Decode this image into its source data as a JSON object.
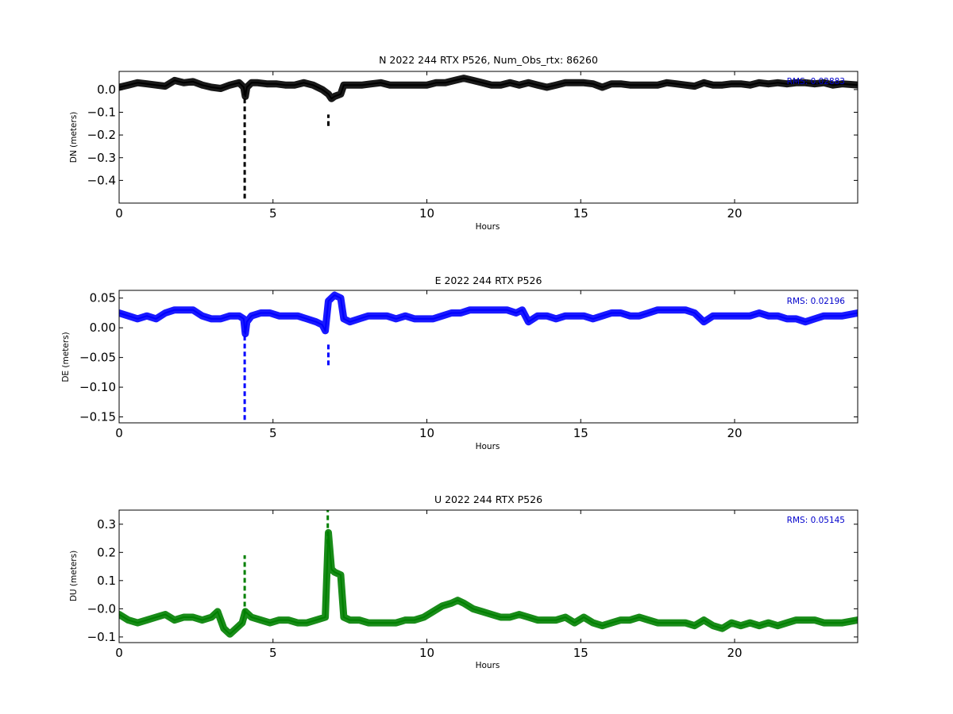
{
  "chart_data": [
    {
      "type": "line",
      "title": "N 2022 244 RTX  P526, Num_Obs_rtx: 86260",
      "xlabel": "Hours",
      "ylabel": "DN (meters)",
      "xlim": [
        0,
        24
      ],
      "ylim": [
        -0.5,
        0.08
      ],
      "xticks": [
        0,
        5,
        10,
        15,
        20
      ],
      "yticks": [
        0.0,
        -0.1,
        -0.2,
        -0.3,
        -0.4
      ],
      "ytick_labels": [
        "0.0",
        "−0.1",
        "−0.2",
        "−0.3",
        "−0.4"
      ],
      "color": "#000000",
      "rms_label": "RMS:  0.02883",
      "series": [
        {
          "x": [
            0.0,
            0.3,
            0.6,
            0.9,
            1.2,
            1.5,
            1.8,
            2.1,
            2.4,
            2.7,
            3.0,
            3.3,
            3.6,
            3.9,
            4.05,
            4.1,
            4.15,
            4.3,
            4.5,
            4.8,
            5.1,
            5.4,
            5.7,
            6.0,
            6.3,
            6.6,
            6.8,
            6.9,
            7.0,
            7.2,
            7.3,
            7.6,
            7.9,
            8.2,
            8.5,
            8.8,
            9.1,
            9.4,
            9.7,
            10.0,
            10.3,
            10.6,
            10.9,
            11.2,
            11.5,
            11.8,
            12.1,
            12.4,
            12.7,
            13.0,
            13.3,
            13.6,
            13.9,
            14.2,
            14.5,
            14.8,
            15.1,
            15.4,
            15.7,
            16.0,
            16.3,
            16.6,
            16.9,
            17.2,
            17.5,
            17.8,
            18.1,
            18.4,
            18.7,
            19.0,
            19.3,
            19.6,
            19.9,
            20.2,
            20.5,
            20.8,
            21.1,
            21.4,
            21.7,
            22.0,
            22.3,
            22.6,
            22.9,
            23.2,
            23.5,
            24.0
          ],
          "y": [
            0.01,
            0.02,
            0.03,
            0.025,
            0.02,
            0.015,
            0.04,
            0.03,
            0.035,
            0.02,
            0.01,
            0.005,
            0.02,
            0.03,
            0.01,
            -0.03,
            0.01,
            0.03,
            0.03,
            0.025,
            0.025,
            0.02,
            0.02,
            0.03,
            0.02,
            0.0,
            -0.02,
            -0.04,
            -0.03,
            -0.02,
            0.02,
            0.02,
            0.02,
            0.025,
            0.03,
            0.02,
            0.02,
            0.02,
            0.02,
            0.02,
            0.03,
            0.03,
            0.04,
            0.05,
            0.04,
            0.03,
            0.02,
            0.02,
            0.03,
            0.02,
            0.03,
            0.02,
            0.01,
            0.02,
            0.03,
            0.03,
            0.03,
            0.025,
            0.01,
            0.025,
            0.025,
            0.02,
            0.02,
            0.02,
            0.02,
            0.03,
            0.025,
            0.02,
            0.015,
            0.03,
            0.02,
            0.02,
            0.025,
            0.025,
            0.02,
            0.03,
            0.025,
            0.03,
            0.025,
            0.03,
            0.03,
            0.025,
            0.03,
            0.02,
            0.025,
            0.02
          ]
        }
      ],
      "spikes": [
        {
          "x": 4.08,
          "lo": -0.48,
          "hi": 0.0
        },
        {
          "x": 6.8,
          "lo": -0.16,
          "hi": -0.11
        }
      ]
    },
    {
      "type": "line",
      "title": "E 2022 244 RTX  P526",
      "xlabel": "Hours",
      "ylabel": "DE (meters)",
      "xlim": [
        0,
        24
      ],
      "ylim": [
        -0.16,
        0.063
      ],
      "xticks": [
        0,
        5,
        10,
        15,
        20
      ],
      "yticks": [
        0.05,
        0.0,
        -0.05,
        -0.1,
        -0.15
      ],
      "ytick_labels": [
        "0.05",
        "0.00",
        "−0.05",
        "−0.10",
        "−0.15"
      ],
      "color": "#0000ff",
      "rms_label": "RMS:  0.02196",
      "series": [
        {
          "x": [
            0.0,
            0.3,
            0.6,
            0.9,
            1.2,
            1.5,
            1.8,
            2.1,
            2.4,
            2.7,
            3.0,
            3.3,
            3.6,
            3.9,
            4.05,
            4.1,
            4.15,
            4.3,
            4.6,
            4.9,
            5.2,
            5.5,
            5.8,
            6.1,
            6.4,
            6.6,
            6.7,
            6.8,
            6.9,
            7.0,
            7.2,
            7.3,
            7.5,
            7.8,
            8.1,
            8.4,
            8.7,
            9.0,
            9.3,
            9.6,
            9.9,
            10.2,
            10.5,
            10.8,
            11.1,
            11.4,
            11.7,
            12.0,
            12.3,
            12.6,
            12.9,
            13.1,
            13.3,
            13.6,
            13.9,
            14.2,
            14.5,
            14.8,
            15.1,
            15.4,
            15.7,
            16.0,
            16.3,
            16.6,
            16.9,
            17.2,
            17.5,
            17.8,
            18.1,
            18.4,
            18.7,
            19.0,
            19.3,
            19.6,
            19.9,
            20.2,
            20.5,
            20.8,
            21.1,
            21.4,
            21.7,
            22.0,
            22.3,
            22.6,
            22.9,
            23.2,
            23.5,
            24.0
          ],
          "y": [
            0.025,
            0.02,
            0.015,
            0.02,
            0.015,
            0.025,
            0.03,
            0.03,
            0.03,
            0.02,
            0.015,
            0.015,
            0.02,
            0.02,
            0.015,
            -0.01,
            0.01,
            0.02,
            0.025,
            0.025,
            0.02,
            0.02,
            0.02,
            0.015,
            0.01,
            0.005,
            -0.005,
            0.045,
            0.05,
            0.055,
            0.05,
            0.015,
            0.01,
            0.015,
            0.02,
            0.02,
            0.02,
            0.015,
            0.02,
            0.015,
            0.015,
            0.015,
            0.02,
            0.025,
            0.025,
            0.03,
            0.03,
            0.03,
            0.03,
            0.03,
            0.025,
            0.03,
            0.01,
            0.02,
            0.02,
            0.015,
            0.02,
            0.02,
            0.02,
            0.015,
            0.02,
            0.025,
            0.025,
            0.02,
            0.02,
            0.025,
            0.03,
            0.03,
            0.03,
            0.03,
            0.025,
            0.01,
            0.02,
            0.02,
            0.02,
            0.02,
            0.02,
            0.025,
            0.02,
            0.02,
            0.015,
            0.015,
            0.01,
            0.015,
            0.02,
            0.02,
            0.02,
            0.025
          ]
        }
      ],
      "spikes": [
        {
          "x": 4.08,
          "lo": -0.155,
          "hi": -0.005
        },
        {
          "x": 6.8,
          "lo": -0.063,
          "hi": -0.025
        }
      ]
    },
    {
      "type": "line",
      "title": "U 2022 244 RTX  P526",
      "xlabel": "Hours",
      "ylabel": "DU (meters)",
      "xlim": [
        0,
        24
      ],
      "ylim": [
        -0.12,
        0.35
      ],
      "xticks": [
        0,
        5,
        10,
        15,
        20
      ],
      "yticks": [
        0.3,
        0.2,
        0.1,
        0.0,
        -0.1
      ],
      "ytick_labels": [
        "0.3",
        "0.2",
        "0.1",
        "−0.0",
        "−0.1"
      ],
      "color": "#008000",
      "rms_label": "RMS:  0.05145",
      "series": [
        {
          "x": [
            0.0,
            0.3,
            0.6,
            0.9,
            1.2,
            1.5,
            1.8,
            2.1,
            2.4,
            2.7,
            3.0,
            3.2,
            3.4,
            3.6,
            3.8,
            4.0,
            4.1,
            4.3,
            4.6,
            4.9,
            5.2,
            5.5,
            5.8,
            6.1,
            6.4,
            6.7,
            6.8,
            6.9,
            7.0,
            7.2,
            7.3,
            7.5,
            7.8,
            8.1,
            8.4,
            8.7,
            9.0,
            9.3,
            9.6,
            9.9,
            10.2,
            10.5,
            10.8,
            11.0,
            11.2,
            11.5,
            11.8,
            12.1,
            12.4,
            12.7,
            13.0,
            13.3,
            13.6,
            13.9,
            14.2,
            14.5,
            14.8,
            15.1,
            15.4,
            15.7,
            16.0,
            16.3,
            16.6,
            16.9,
            17.2,
            17.5,
            17.8,
            18.1,
            18.4,
            18.7,
            19.0,
            19.3,
            19.6,
            19.9,
            20.2,
            20.5,
            20.8,
            21.1,
            21.4,
            21.7,
            22.0,
            22.3,
            22.6,
            22.9,
            23.2,
            23.5,
            24.0
          ],
          "y": [
            -0.02,
            -0.04,
            -0.05,
            -0.04,
            -0.03,
            -0.02,
            -0.04,
            -0.03,
            -0.03,
            -0.04,
            -0.03,
            -0.01,
            -0.07,
            -0.09,
            -0.07,
            -0.05,
            -0.01,
            -0.03,
            -0.04,
            -0.05,
            -0.04,
            -0.04,
            -0.05,
            -0.05,
            -0.04,
            -0.03,
            0.27,
            0.14,
            0.13,
            0.12,
            -0.03,
            -0.04,
            -0.04,
            -0.05,
            -0.05,
            -0.05,
            -0.05,
            -0.04,
            -0.04,
            -0.03,
            -0.01,
            0.01,
            0.02,
            0.03,
            0.02,
            0.0,
            -0.01,
            -0.02,
            -0.03,
            -0.03,
            -0.02,
            -0.03,
            -0.04,
            -0.04,
            -0.04,
            -0.03,
            -0.05,
            -0.03,
            -0.05,
            -0.06,
            -0.05,
            -0.04,
            -0.04,
            -0.03,
            -0.04,
            -0.05,
            -0.05,
            -0.05,
            -0.05,
            -0.06,
            -0.04,
            -0.06,
            -0.07,
            -0.05,
            -0.06,
            -0.05,
            -0.06,
            -0.05,
            -0.06,
            -0.05,
            -0.04,
            -0.04,
            -0.04,
            -0.05,
            -0.05,
            -0.05,
            -0.04
          ]
        }
      ],
      "spikes": [
        {
          "x": 4.08,
          "lo": -0.02,
          "hi": 0.19
        },
        {
          "x": 6.78,
          "lo": 0.23,
          "hi": 0.35
        }
      ]
    }
  ]
}
